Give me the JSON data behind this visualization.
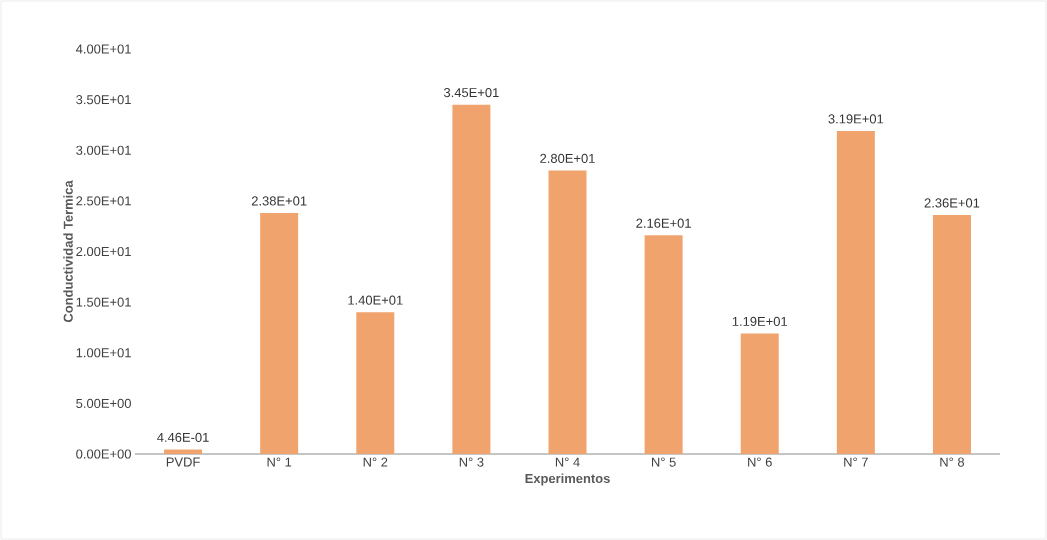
{
  "chart_data": {
    "type": "bar",
    "xlabel": "Experimentos",
    "ylabel": "Conductividad Termica",
    "categories": [
      "PVDF",
      "N° 1",
      "N° 2",
      "N° 3",
      "N° 4",
      "N° 5",
      "N° 6",
      "N° 7",
      "N° 8"
    ],
    "values": [
      0.446,
      23.8,
      14.0,
      34.5,
      28.0,
      21.6,
      11.9,
      31.9,
      23.6
    ],
    "value_labels": [
      "4.46E-01",
      "2.38E+01",
      "1.40E+01",
      "3.45E+01",
      "2.80E+01",
      "2.16E+01",
      "1.19E+01",
      "3.19E+01",
      "2.36E+01"
    ],
    "color": "#f0a36c",
    "ylim": [
      0,
      40
    ],
    "yticks": [
      {
        "value": 0,
        "label": "0.00E+00"
      },
      {
        "value": 5,
        "label": "5.00E+00"
      },
      {
        "value": 10,
        "label": "1.00E+01"
      },
      {
        "value": 15,
        "label": "1.50E+01"
      },
      {
        "value": 20,
        "label": "2.00E+01"
      },
      {
        "value": 25,
        "label": "2.50E+01"
      },
      {
        "value": 30,
        "label": "3.00E+01"
      },
      {
        "value": 35,
        "label": "3.50E+01"
      },
      {
        "value": 40,
        "label": "4.00E+01"
      }
    ]
  }
}
